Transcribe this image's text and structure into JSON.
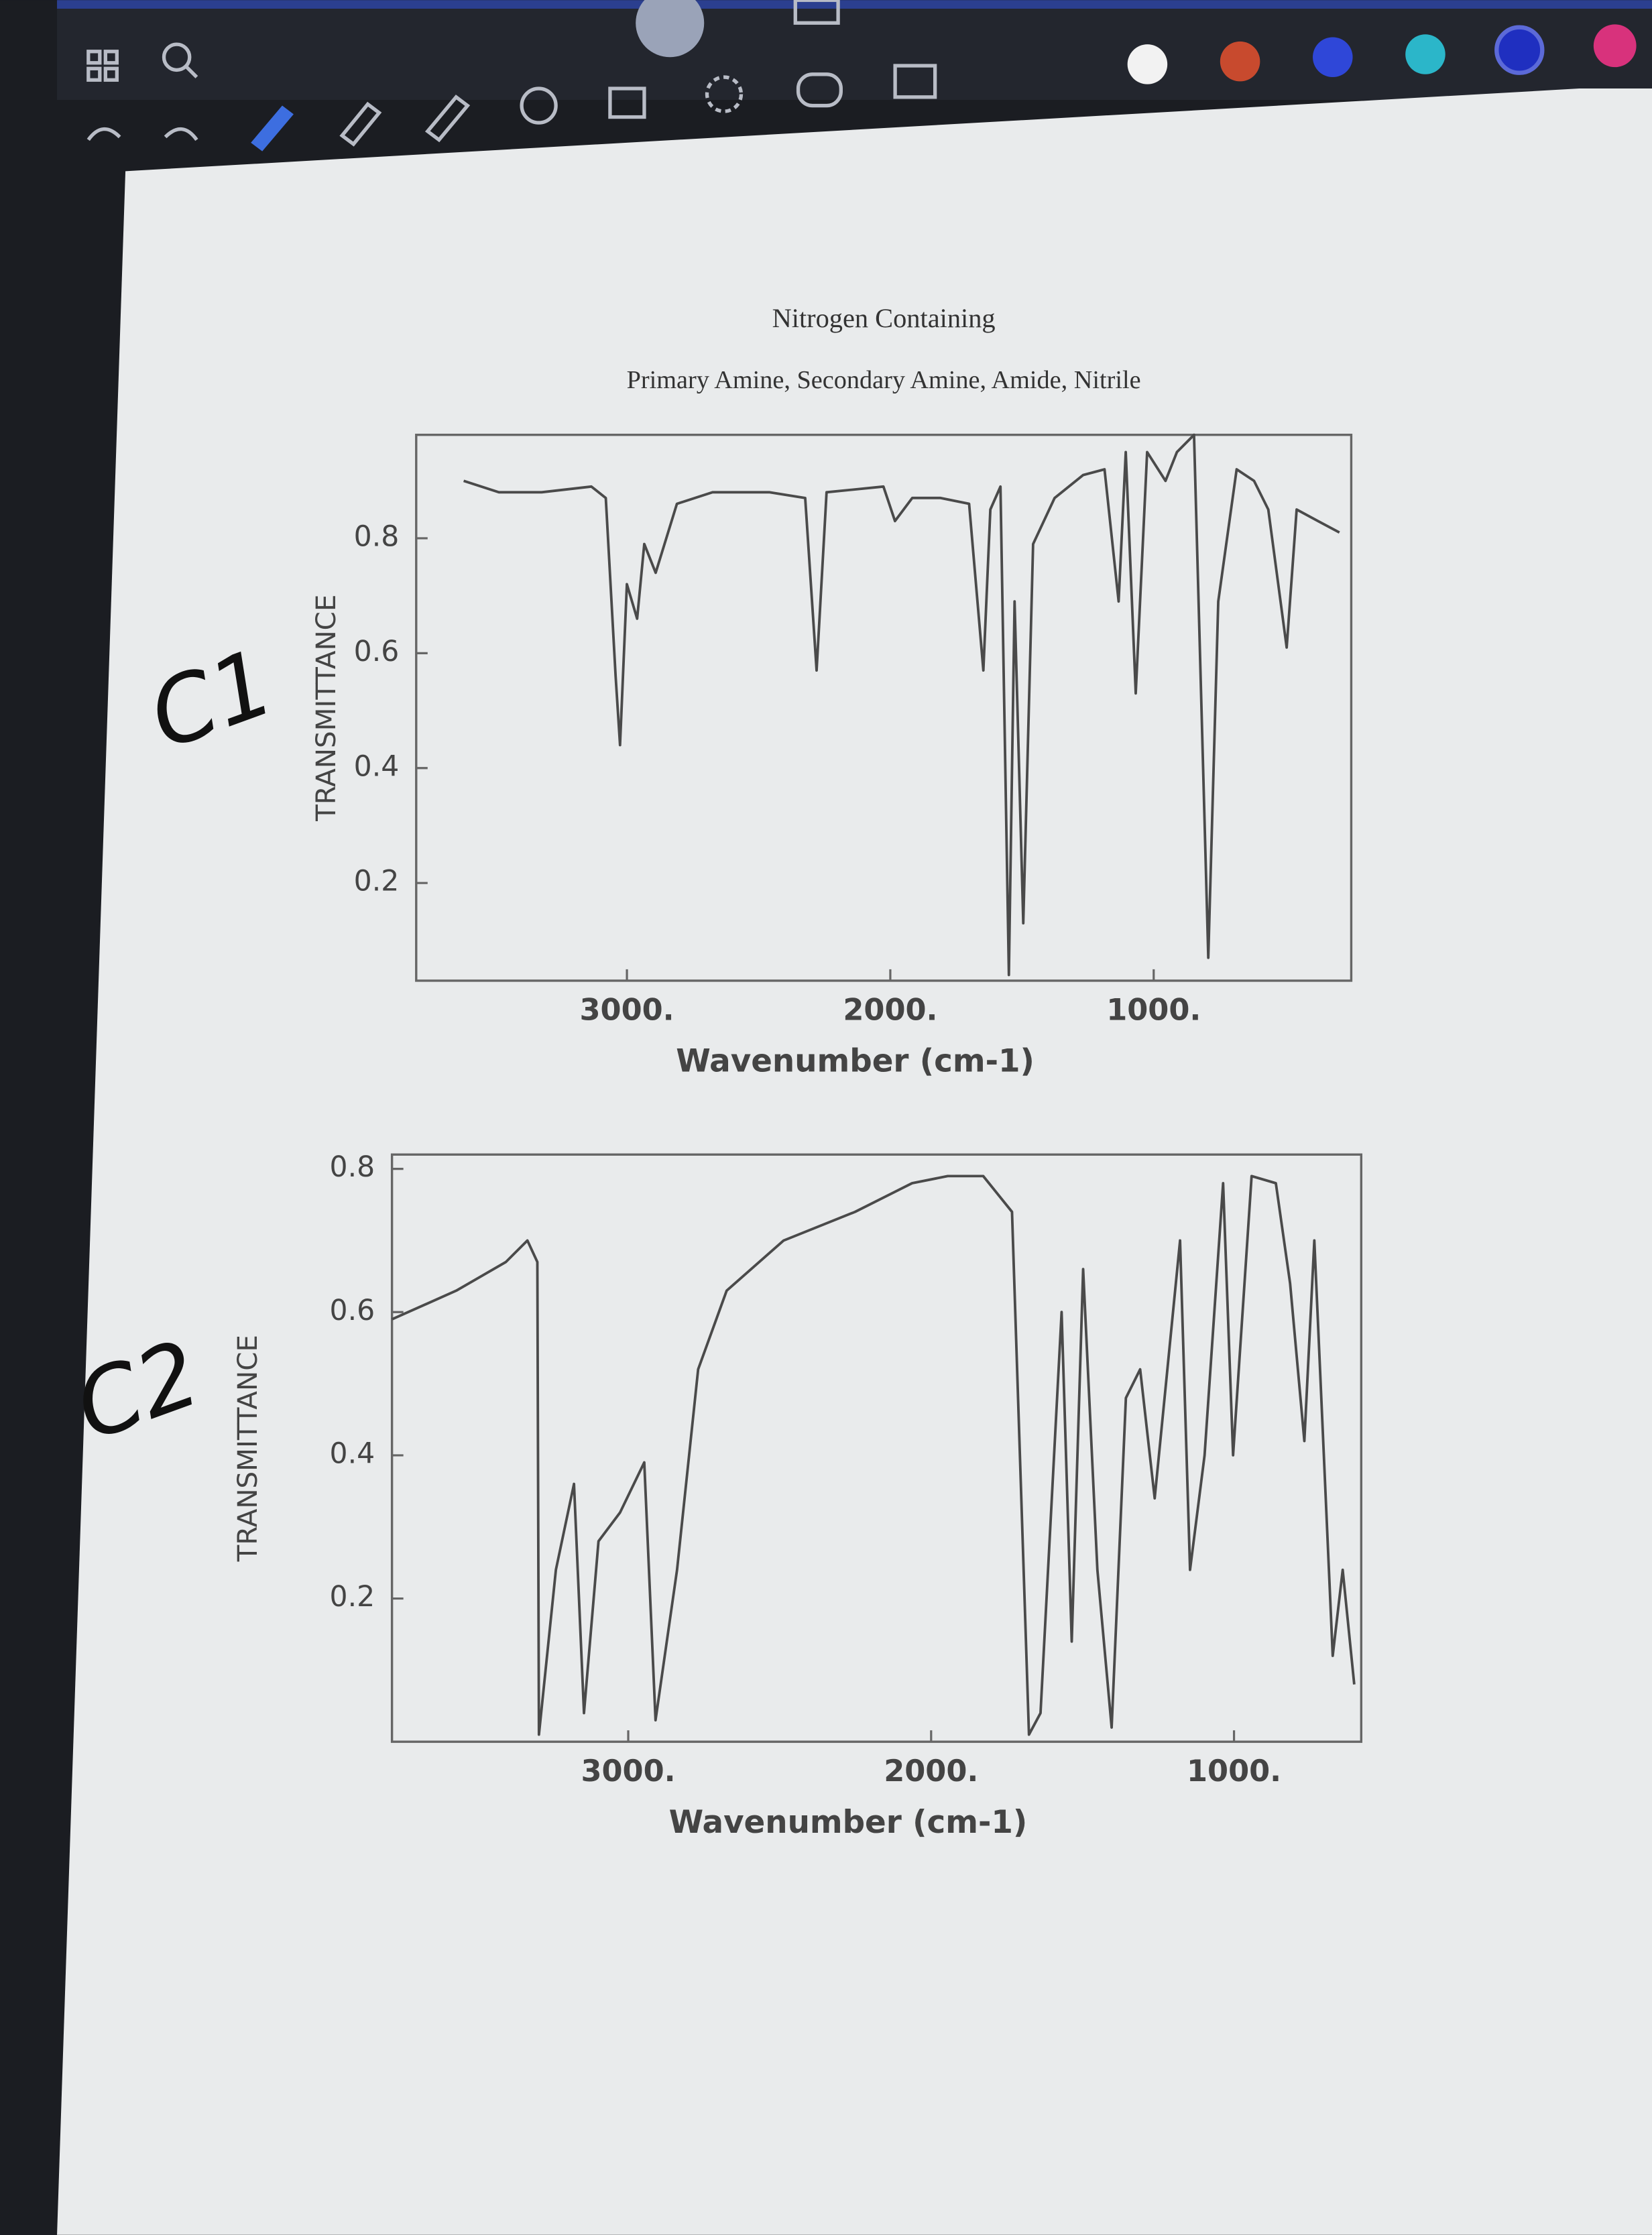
{
  "chart_data": [
    {
      "type": "line",
      "title": "Nitrogen Containing",
      "subtitle": "Primary Amine, Secondary Amine, Amide, Nitrile",
      "x_label": "Wavenumber (cm-1)",
      "y_label": "TRANSMITTANCE",
      "color": "#4a4a4a",
      "xlim": [
        3800,
        250
      ],
      "ylim": [
        0.03,
        0.98
      ],
      "xticks": [
        {
          "value": 3000,
          "label": "3000."
        },
        {
          "value": 2000,
          "label": "2000."
        },
        {
          "value": 1000,
          "label": "1000."
        }
      ],
      "yticks": [
        0.2,
        0.4,
        0.6,
        0.8
      ],
      "x": [
        3620,
        3486,
        3324,
        3135,
        3080,
        3043,
        3026,
        3000,
        2961,
        2934,
        2891,
        2810,
        2675,
        2458,
        2323,
        2280,
        2242,
        2026,
        1982,
        1917,
        1809,
        1701,
        1647,
        1620,
        1582,
        1550,
        1528,
        1495,
        1458,
        1376,
        1268,
        1187,
        1133,
        1106,
        1068,
        1025,
        955,
        912,
        847,
        793,
        755,
        685,
        619,
        565,
        495,
        457,
        376,
        295
      ],
      "values": [
        0.9,
        0.88,
        0.88,
        0.89,
        0.87,
        0.56,
        0.44,
        0.72,
        0.66,
        0.79,
        0.74,
        0.86,
        0.88,
        0.88,
        0.87,
        0.57,
        0.88,
        0.89,
        0.83,
        0.87,
        0.87,
        0.86,
        0.57,
        0.85,
        0.89,
        0.04,
        0.69,
        0.13,
        0.79,
        0.87,
        0.91,
        0.92,
        0.69,
        0.95,
        0.53,
        0.95,
        0.9,
        0.95,
        0.98,
        0.07,
        0.69,
        0.92,
        0.9,
        0.85,
        0.61,
        0.85,
        0.83,
        0.81
      ]
    },
    {
      "type": "line",
      "x_label": "Wavenumber (cm-1)",
      "y_label": "TRANSMITTANCE",
      "color": "#4a4a4a",
      "xlim": [
        3780,
        580
      ],
      "ylim": [
        0,
        0.82
      ],
      "xticks": [
        {
          "value": 3000,
          "label": "3000."
        },
        {
          "value": 2000,
          "label": "2000."
        },
        {
          "value": 1000,
          "label": "1000."
        }
      ],
      "yticks": [
        0.2,
        0.4,
        0.6,
        0.8
      ],
      "x": [
        3780,
        3568,
        3404,
        3333,
        3300,
        3295,
        3239,
        3179,
        3146,
        3098,
        3027,
        2947,
        2910,
        2839,
        2769,
        2675,
        2487,
        2251,
        2063,
        1945,
        1828,
        1733,
        1677,
        1639,
        1569,
        1536,
        1498,
        1451,
        1404,
        1357,
        1310,
        1262,
        1178,
        1145,
        1097,
        1036,
        1003,
        942,
        862,
        815,
        768,
        735,
        674,
        641,
        603
      ],
      "values": [
        0.59,
        0.63,
        0.67,
        0.7,
        0.67,
        0.01,
        0.24,
        0.36,
        0.04,
        0.28,
        0.32,
        0.39,
        0.03,
        0.24,
        0.52,
        0.63,
        0.7,
        0.74,
        0.78,
        0.79,
        0.79,
        0.74,
        0.01,
        0.04,
        0.6,
        0.14,
        0.66,
        0.24,
        0.02,
        0.48,
        0.52,
        0.34,
        0.7,
        0.24,
        0.4,
        0.78,
        0.4,
        0.79,
        0.78,
        0.64,
        0.42,
        0.7,
        0.12,
        0.24,
        0.08
      ]
    }
  ],
  "handwriting": [
    "C1",
    "C2"
  ]
}
